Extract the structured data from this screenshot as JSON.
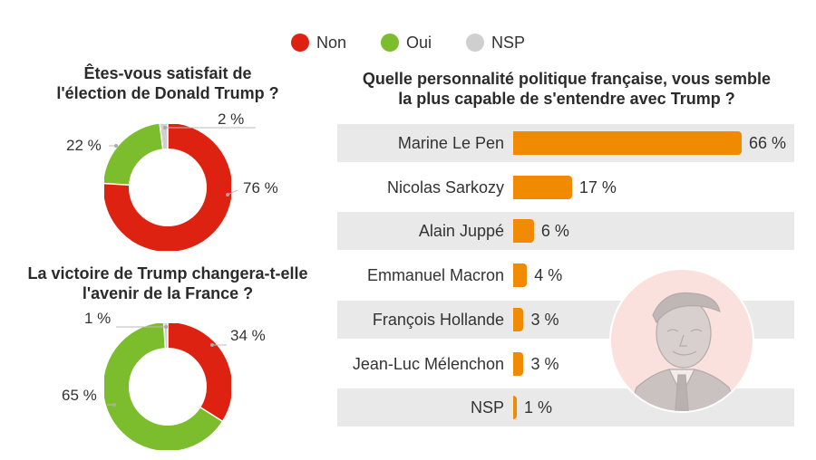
{
  "colors": {
    "non": "#dd2211",
    "oui": "#7cbd2d",
    "nsp": "#cfcfcf",
    "bar": "#f08a00",
    "rowbg": "#e9e9e9"
  },
  "legend": [
    {
      "label": "Non",
      "color": "#dd2211"
    },
    {
      "label": "Oui",
      "color": "#7cbd2d"
    },
    {
      "label": "NSP",
      "color": "#cfcfcf"
    }
  ],
  "portrait_icon": "trump-portrait-icon",
  "chart_data": [
    {
      "type": "pie",
      "variant": "donut",
      "title": "Êtes-vous satisfait de l'élection de Donald Trump ?",
      "title_lines": [
        "Êtes-vous satisfait de",
        "l'élection de Donald Trump ?"
      ],
      "categories": [
        "Non",
        "Oui",
        "NSP"
      ],
      "values": [
        76,
        22,
        2
      ],
      "labels": [
        "76 %",
        "22 %",
        "2 %"
      ]
    },
    {
      "type": "pie",
      "variant": "donut",
      "title": "La victoire de Trump changera-t-elle l'avenir de la France ?",
      "title_lines": [
        "La victoire de Trump changera-t-elle",
        "l'avenir de la France ?"
      ],
      "categories": [
        "Non",
        "Oui",
        "NSP"
      ],
      "values": [
        34,
        65,
        1
      ],
      "labels": [
        "34 %",
        "65 %",
        "1 %"
      ]
    },
    {
      "type": "bar",
      "orientation": "horizontal",
      "title": "Quelle personnalité politique française, vous semble la plus capable de s'entendre avec Trump ?",
      "title_lines": [
        "Quelle personnalité politique française, vous semble",
        "la plus capable de s'entendre avec Trump ?"
      ],
      "categories": [
        "Marine Le Pen",
        "Nicolas Sarkozy",
        "Alain Juppé",
        "Emmanuel Macron",
        "François Hollande",
        "Jean-Luc Mélenchon",
        "NSP"
      ],
      "values": [
        66,
        17,
        6,
        4,
        3,
        3,
        1
      ],
      "labels": [
        "66 %",
        "17 %",
        "6 %",
        "4 %",
        "3 %",
        "3 %",
        "1 %"
      ],
      "xlim": [
        0,
        66
      ]
    }
  ]
}
